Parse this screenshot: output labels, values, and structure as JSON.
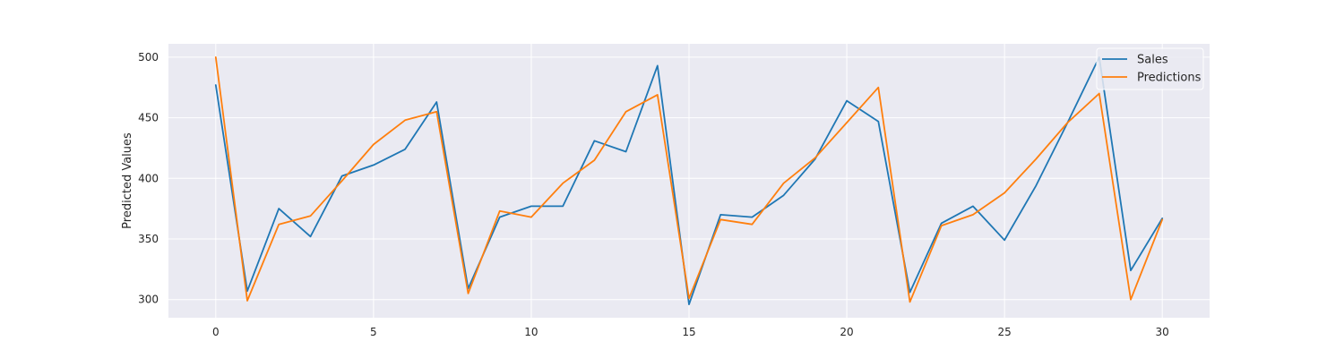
{
  "chart_data": {
    "type": "line",
    "title": "",
    "xlabel": "",
    "ylabel": "Predicted Values",
    "xlim": [
      -1.5,
      31.5
    ],
    "ylim": [
      285,
      511
    ],
    "xticks": [
      0,
      5,
      10,
      15,
      20,
      25,
      30
    ],
    "yticks": [
      300,
      350,
      400,
      450,
      500
    ],
    "grid": true,
    "legend_position": "top-right",
    "x": [
      0,
      1,
      2,
      3,
      4,
      5,
      6,
      7,
      8,
      9,
      10,
      11,
      12,
      13,
      14,
      15,
      16,
      17,
      18,
      19,
      20,
      21,
      22,
      23,
      24,
      25,
      26,
      27,
      28,
      29,
      30
    ],
    "series": [
      {
        "name": "Sales",
        "color": "#1f77b4",
        "values": [
          477,
          307,
          375,
          352,
          402,
          411,
          424,
          463,
          309,
          368,
          377,
          377,
          431,
          422,
          493,
          296,
          370,
          368,
          386,
          416,
          464,
          447,
          306,
          363,
          377,
          349,
          394,
          446,
          500,
          324,
          367
        ]
      },
      {
        "name": "Predictions",
        "color": "#ff7f0e",
        "values": [
          500,
          299,
          362,
          369,
          398,
          428,
          448,
          455,
          305,
          373,
          368,
          396,
          415,
          455,
          469,
          301,
          366,
          362,
          396,
          417,
          446,
          475,
          298,
          361,
          370,
          388,
          416,
          446,
          470,
          300,
          366
        ]
      }
    ],
    "plot_background": "#eaeaf2",
    "grid_color": "#ffffff"
  }
}
